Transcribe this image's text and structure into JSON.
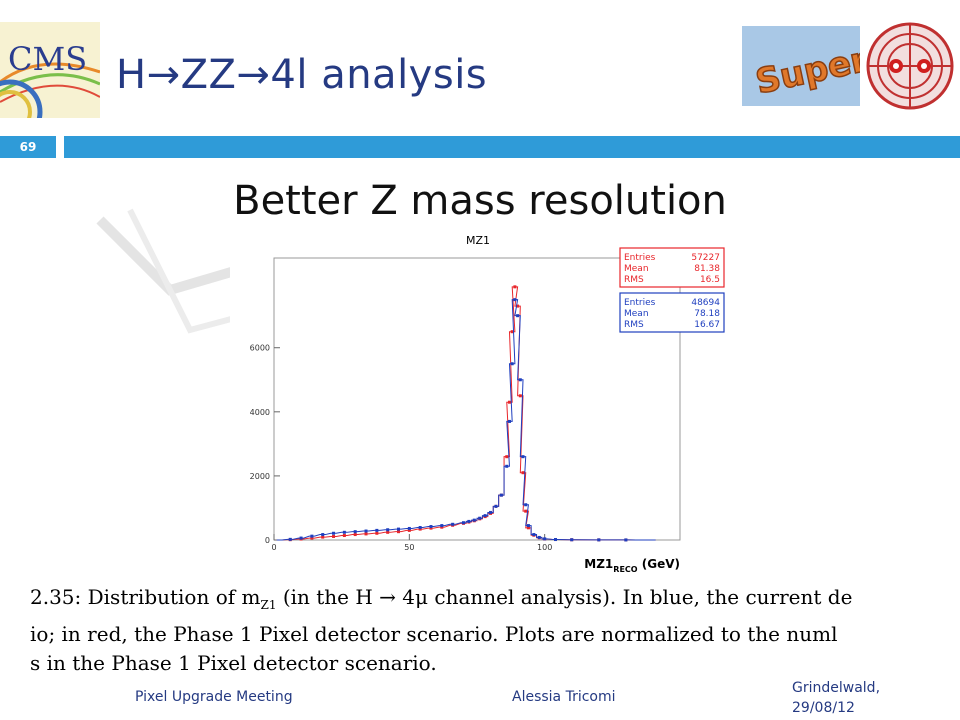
{
  "slide": {
    "title": "H→ZZ→4l analysis",
    "page_number": "69",
    "subtitle": "Better Z mass resolution",
    "footer_left": "Pixel Upgrade Meeting",
    "footer_center": "Alessia Tricomi",
    "footer_right_line1": "Grindelwald,",
    "footer_right_line2": "29/08/12",
    "cms_logo_text": "CMS",
    "super_logo_text": "Super",
    "accent_color": "#2f9bd8",
    "title_color": "#253a82"
  },
  "caption": {
    "line1": "2.35: Distribution of m",
    "line1_sub": "Z1",
    "line1_rest": " (in the H → 4μ channel analysis). In blue, the current de",
    "line2": "io; in red, the Phase 1 Pixel detector scenario.  Plots are normalized to the numl",
    "line3": "s in the Phase 1 Pixel detector scenario."
  },
  "chart_data": {
    "type": "histogram",
    "title": "MZ1",
    "xlabel": "MZ1",
    "xlabel_sub": "RECO",
    "xlabel_unit": " (GeV)",
    "xlim": [
      0,
      150
    ],
    "ylim": [
      0,
      8800
    ],
    "xticks": [
      0,
      50,
      100
    ],
    "yticks": [
      0,
      2000,
      4000,
      6000
    ],
    "ytick_labels": [
      "0",
      "2000",
      "4000",
      "6000"
    ],
    "bin_width": 2,
    "legend_position": "top-right",
    "stats": [
      {
        "color": "#e8262b",
        "rows": [
          [
            "Entries",
            "57227"
          ],
          [
            "Mean",
            "81.38"
          ],
          [
            "RMS",
            "16.5"
          ]
        ]
      },
      {
        "color": "#1f3fbf",
        "rows": [
          [
            "Entries",
            "48694"
          ],
          [
            "Mean",
            "78.18"
          ],
          [
            "RMS",
            "16.67"
          ]
        ]
      }
    ],
    "series": [
      {
        "color": "#e8262b",
        "x": [
          2,
          6,
          10,
          14,
          18,
          22,
          26,
          30,
          34,
          38,
          42,
          46,
          50,
          54,
          58,
          62,
          66,
          70,
          72,
          74,
          76,
          78,
          80,
          82,
          84,
          86,
          87,
          88,
          89,
          90,
          91,
          92,
          93,
          94,
          96,
          98,
          100,
          104,
          110,
          120,
          130,
          140
        ],
        "values": [
          0,
          10,
          30,
          60,
          90,
          110,
          140,
          170,
          190,
          210,
          240,
          260,
          300,
          340,
          370,
          400,
          460,
          520,
          560,
          600,
          660,
          730,
          830,
          1050,
          1400,
          2600,
          4300,
          6500,
          7900,
          7300,
          4500,
          2100,
          900,
          380,
          150,
          70,
          30,
          15,
          8,
          4,
          2,
          0
        ]
      },
      {
        "color": "#1f3fbf",
        "x": [
          2,
          6,
          10,
          14,
          18,
          22,
          26,
          30,
          34,
          38,
          42,
          46,
          50,
          54,
          58,
          62,
          66,
          70,
          72,
          74,
          76,
          78,
          80,
          82,
          84,
          86,
          87,
          88,
          89,
          90,
          91,
          92,
          93,
          94,
          96,
          98,
          100,
          104,
          110,
          120,
          130,
          140
        ],
        "values": [
          0,
          20,
          60,
          120,
          170,
          210,
          240,
          260,
          280,
          300,
          320,
          340,
          360,
          390,
          420,
          450,
          490,
          540,
          580,
          620,
          680,
          760,
          860,
          1050,
          1400,
          2300,
          3700,
          5500,
          7500,
          7000,
          5000,
          2600,
          1100,
          450,
          170,
          80,
          35,
          15,
          8,
          4,
          2,
          0
        ]
      }
    ]
  }
}
